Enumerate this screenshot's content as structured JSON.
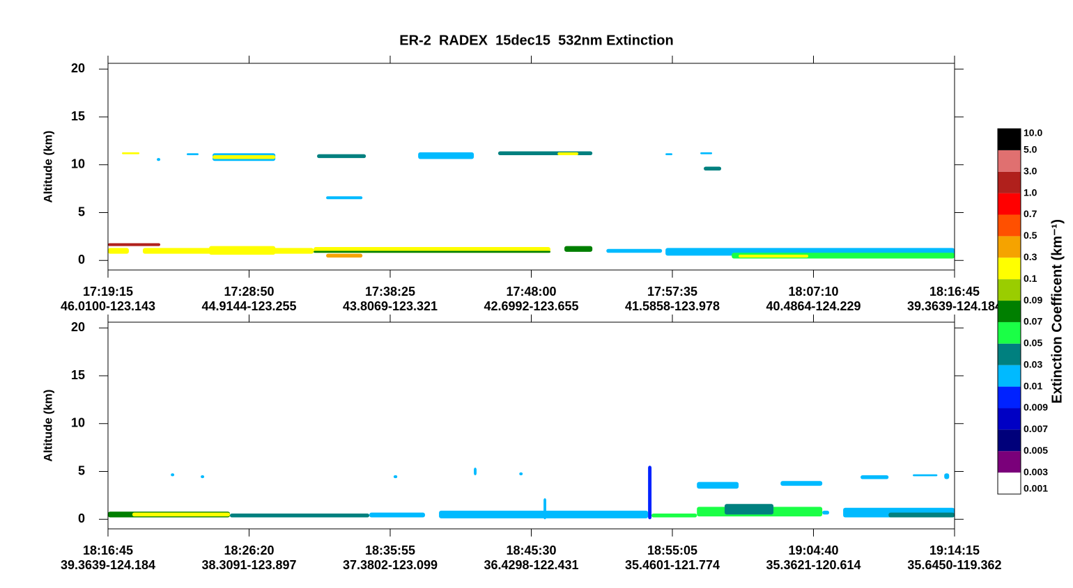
{
  "chart_data": {
    "type": "curtain",
    "title": "ER-2  RADEX  15dec15  532nm Extinction",
    "colorbar": {
      "label": "Extinction Coefficent (km⁻¹)",
      "levels": [
        0.001,
        0.003,
        0.005,
        0.007,
        0.009,
        0.01,
        0.03,
        0.05,
        0.07,
        0.09,
        0.1,
        0.3,
        0.5,
        0.7,
        {
          "value": 1,
          "label": "1.0"
        },
        {
          "value": 3,
          "label": "3.0"
        },
        {
          "value": 5,
          "label": "5.0"
        },
        {
          "value": 10,
          "label": "10.0"
        }
      ],
      "colors": [
        "#ffffff",
        "#7a007a",
        "#00007a",
        "#0000c4",
        "#0022ff",
        "#00baff",
        "#00807f",
        "#1aff46",
        "#007f00",
        "#9acd00",
        "#ffff00",
        "#f5a300",
        "#ff5000",
        "#ff0000",
        "#b0201c",
        "#e07070",
        "#000000"
      ]
    },
    "panels": [
      {
        "ylabel": "Altitude (km)",
        "ylim": [
          -1,
          20.6
        ],
        "yticks": [
          0,
          5,
          10,
          15,
          20
        ],
        "xlim": [
          "17:19:15",
          "18:16:45"
        ],
        "xticks": [
          {
            "time": "17:19:15",
            "location": "46.0100-123.143"
          },
          {
            "time": "17:28:50",
            "location": "44.9144-123.255"
          },
          {
            "time": "17:38:25",
            "location": "43.8069-123.321"
          },
          {
            "time": "17:48:00",
            "location": "42.6992-123.655"
          },
          {
            "time": "17:57:35",
            "location": "41.5858-123.978"
          },
          {
            "time": "18:07:10",
            "location": "40.4864-124.229"
          },
          {
            "time": "18:16:45",
            "location": "39.3639-124.184"
          }
        ],
        "features": [
          {
            "t0": "17:19:15",
            "t1": "17:22:48",
            "z0": 1.5,
            "z1": 1.8,
            "v": 2.0
          },
          {
            "t0": "17:19:15",
            "t1": "17:20:40",
            "z0": 0.7,
            "z1": 1.3,
            "v": 0.2
          },
          {
            "t0": "17:21:37",
            "t1": "17:33:13",
            "z0": 0.7,
            "z1": 1.3,
            "v": 0.2
          },
          {
            "t0": "17:26:07",
            "t1": "17:30:37",
            "z0": 0.6,
            "z1": 1.5,
            "v": 0.2
          },
          {
            "t0": "17:33:13",
            "t1": "17:49:18",
            "z0": 0.8,
            "z1": 1.4,
            "v": 0.2
          },
          {
            "t0": "17:33:13",
            "t1": "17:49:18",
            "z0": 0.8,
            "z1": 1.0,
            "v": 0.08
          },
          {
            "t0": "17:34:04",
            "t1": "17:36:32",
            "z0": 0.3,
            "z1": 0.7,
            "v": 0.4
          },
          {
            "t0": "17:50:15",
            "t1": "17:52:09",
            "z0": 0.9,
            "z1": 1.5,
            "v": 0.08
          },
          {
            "t0": "17:53:06",
            "t1": "17:56:53",
            "z0": 0.8,
            "z1": 1.2,
            "v": 0.02
          },
          {
            "t0": "17:57:07",
            "t1": "18:16:45",
            "z0": 0.5,
            "z1": 1.3,
            "v": 0.02
          },
          {
            "t0": "18:01:37",
            "t1": "18:16:45",
            "z0": 0.2,
            "z1": 0.8,
            "v": 0.06
          },
          {
            "t0": "18:02:05",
            "t1": "18:06:49",
            "z0": 0.3,
            "z1": 0.6,
            "v": 0.2
          },
          {
            "t0": "17:20:12",
            "t1": "17:21:23",
            "z0": 11.1,
            "z1": 11.3,
            "v": 0.2
          },
          {
            "t0": "17:24:36",
            "t1": "17:25:24",
            "z0": 11.0,
            "z1": 11.2,
            "v": 0.02
          },
          {
            "t0": "17:26:21",
            "t1": "17:30:37",
            "z0": 10.4,
            "z1": 11.2,
            "v": 0.02
          },
          {
            "t0": "17:26:21",
            "t1": "17:30:37",
            "z0": 10.6,
            "z1": 11.0,
            "v": 0.2
          },
          {
            "t0": "17:33:27",
            "t1": "17:36:46",
            "z0": 10.7,
            "z1": 11.1,
            "v": 0.04
          },
          {
            "t0": "17:40:19",
            "t1": "17:44:06",
            "z0": 10.6,
            "z1": 11.3,
            "v": 0.02
          },
          {
            "t0": "17:45:45",
            "t1": "17:52:09",
            "z0": 11.0,
            "z1": 11.4,
            "v": 0.04
          },
          {
            "t0": "17:49:47",
            "t1": "17:51:12",
            "z0": 11.0,
            "z1": 11.3,
            "v": 0.2
          },
          {
            "t0": "17:57:07",
            "t1": "17:57:35",
            "z0": 11.0,
            "z1": 11.2,
            "v": 0.02
          },
          {
            "t0": "17:59:29",
            "t1": "18:00:17",
            "z0": 11.1,
            "z1": 11.3,
            "v": 0.02
          },
          {
            "t0": "17:59:43",
            "t1": "18:00:54",
            "z0": 9.4,
            "z1": 9.8,
            "v": 0.04
          },
          {
            "t0": "17:34:04",
            "t1": "17:36:32",
            "z0": 6.4,
            "z1": 6.7,
            "v": 0.02
          },
          {
            "t0": "17:22:34",
            "t1": "17:22:48",
            "z0": 10.4,
            "z1": 10.7,
            "v": 0.02
          }
        ]
      },
      {
        "ylabel": "Altitude (km)",
        "ylim": [
          -1,
          20.6
        ],
        "yticks": [
          0,
          5,
          10,
          15,
          20
        ],
        "xlim": [
          "18:16:45",
          "19:14:15"
        ],
        "xticks": [
          {
            "time": "18:16:45",
            "location": "39.3639-124.184"
          },
          {
            "time": "18:26:20",
            "location": "38.3091-123.897"
          },
          {
            "time": "18:35:55",
            "location": "37.3802-123.099"
          },
          {
            "time": "18:45:30",
            "location": "36.4298-122.431"
          },
          {
            "time": "18:55:05",
            "location": "35.4601-121.774"
          },
          {
            "time": "19:04:40",
            "location": "35.3621-120.614"
          },
          {
            "time": "19:14:15",
            "location": "35.6450-119.362"
          }
        ],
        "features": [
          {
            "t0": "18:16:45",
            "t1": "18:25:02",
            "z0": 0.2,
            "z1": 0.8,
            "v": 0.08
          },
          {
            "t0": "18:18:24",
            "t1": "18:25:02",
            "z0": 0.3,
            "z1": 0.7,
            "v": 0.2
          },
          {
            "t0": "18:25:02",
            "t1": "18:34:30",
            "z0": 0.2,
            "z1": 0.6,
            "v": 0.04
          },
          {
            "t0": "18:34:30",
            "t1": "18:38:17",
            "z0": 0.2,
            "z1": 0.7,
            "v": 0.02
          },
          {
            "t0": "18:39:14",
            "t1": "18:53:26",
            "z0": 0.1,
            "z1": 0.9,
            "v": 0.02
          },
          {
            "t0": "18:46:20",
            "t1": "18:46:31",
            "z0": 0.0,
            "z1": 2.2,
            "v": 0.02
          },
          {
            "t0": "18:53:26",
            "t1": "18:53:40",
            "z0": 0.0,
            "z1": 5.6,
            "v": 0.0095
          },
          {
            "t0": "18:53:40",
            "t1": "18:56:45",
            "z0": 0.2,
            "z1": 0.6,
            "v": 0.06
          },
          {
            "t0": "18:56:45",
            "t1": "19:05:16",
            "z0": 0.3,
            "z1": 1.3,
            "v": 0.06
          },
          {
            "t0": "18:58:38",
            "t1": "19:01:57",
            "z0": 0.5,
            "z1": 1.6,
            "v": 0.04
          },
          {
            "t0": "19:05:16",
            "t1": "19:05:44",
            "z0": 0.5,
            "z1": 0.9,
            "v": 0.02
          },
          {
            "t0": "19:06:41",
            "t1": "19:14:15",
            "z0": 0.2,
            "z1": 1.2,
            "v": 0.02
          },
          {
            "t0": "19:09:46",
            "t1": "19:14:15",
            "z0": 0.2,
            "z1": 0.7,
            "v": 0.04
          },
          {
            "t0": "18:21:01",
            "t1": "18:21:15",
            "z0": 4.5,
            "z1": 4.8,
            "v": 0.02
          },
          {
            "t0": "18:23:03",
            "t1": "18:23:17",
            "z0": 4.3,
            "z1": 4.6,
            "v": 0.02
          },
          {
            "t0": "18:36:09",
            "t1": "18:36:24",
            "z0": 4.3,
            "z1": 4.6,
            "v": 0.02
          },
          {
            "t0": "18:41:36",
            "t1": "18:41:47",
            "z0": 4.6,
            "z1": 5.4,
            "v": 0.02
          },
          {
            "t0": "18:44:41",
            "t1": "18:44:55",
            "z0": 4.6,
            "z1": 4.9,
            "v": 0.02
          },
          {
            "t0": "18:56:45",
            "t1": "18:59:35",
            "z0": 3.2,
            "z1": 3.9,
            "v": 0.02
          },
          {
            "t0": "19:02:26",
            "t1": "19:05:16",
            "z0": 3.5,
            "z1": 4.0,
            "v": 0.02
          },
          {
            "t0": "19:07:52",
            "t1": "19:09:46",
            "z0": 4.2,
            "z1": 4.6,
            "v": 0.02
          },
          {
            "t0": "19:11:25",
            "t1": "19:13:05",
            "z0": 4.5,
            "z1": 4.7,
            "v": 0.02
          },
          {
            "t0": "19:13:33",
            "t1": "19:13:53",
            "z0": 4.2,
            "z1": 4.8,
            "v": 0.02
          }
        ]
      }
    ]
  }
}
